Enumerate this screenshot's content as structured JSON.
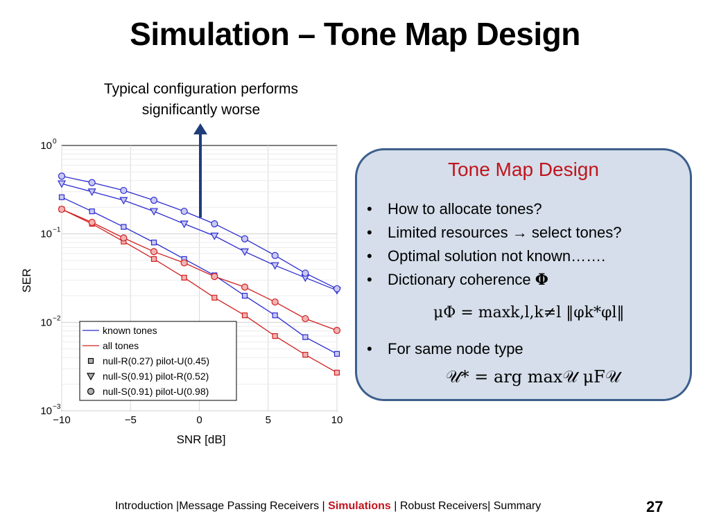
{
  "slide": {
    "title": "Simulation – Tone Map Design",
    "annotation_line1": "Typical configuration performs",
    "annotation_line2": "significantly worse",
    "page_number": "27"
  },
  "info_box": {
    "title": "Tone Map Design",
    "bullets": [
      "How to allocate tones?",
      "Limited resources → select tones?",
      "Optimal solution not known…….",
      "Dictionary coherence"
    ],
    "bullet4_symbol": "Φ",
    "formula1": "μΦ = maxk,l,k≠l ‖φk*φl‖",
    "bullet5": "For same node type",
    "formula2": "𝒰* = arg max𝒰  μF𝒰"
  },
  "footer": {
    "intro": "Introduction |",
    "mp": "Message Passing Receivers | ",
    "sim": "Simulations",
    "rest": " | Robust Receivers| Summary"
  },
  "colors": {
    "title_red": "#c0141c",
    "blue_series": "#2b2bcf",
    "red_series": "#d02020",
    "box_fill": "#d5deea",
    "box_border": "#3b5e8c",
    "arrow": "#1f3d7a"
  },
  "chart_data": {
    "type": "line",
    "xlabel": "SNR [dB]",
    "ylabel": "SER",
    "x": [
      -10,
      -7.8,
      -5.5,
      -3.3,
      -1.1,
      1.1,
      3.3,
      5.5,
      7.7,
      10
    ],
    "xlim": [
      -10,
      10
    ],
    "ylim": [
      0.001,
      1
    ],
    "yscale": "log",
    "xticks": [
      "−10",
      "−5",
      "0",
      "5",
      "10"
    ],
    "yticks": [
      "10",
      "10",
      "10",
      "10"
    ],
    "ytick_exponents": [
      "0",
      "−1",
      "−2",
      "−3"
    ],
    "grid": true,
    "legend_position": "bottom-left",
    "legend": [
      {
        "label": "known tones",
        "kind": "line",
        "color": "blue"
      },
      {
        "label": "all tones",
        "kind": "line",
        "color": "red"
      },
      {
        "label": "null-R(0.27) pilot-U(0.45)",
        "kind": "marker",
        "marker": "square"
      },
      {
        "label": "null-S(0.91) pilot-R(0.52)",
        "kind": "marker",
        "marker": "triangle"
      },
      {
        "label": "null-S(0.91) pilot-U(0.98)",
        "kind": "marker",
        "marker": "circle"
      }
    ],
    "series": [
      {
        "group": "known tones",
        "marker": "square",
        "color": "blue",
        "values": [
          0.26,
          0.18,
          0.12,
          0.08,
          0.052,
          0.034,
          0.02,
          0.012,
          0.0068,
          0.0044
        ]
      },
      {
        "group": "known tones",
        "marker": "triangle",
        "color": "blue",
        "values": [
          0.37,
          0.3,
          0.24,
          0.18,
          0.13,
          0.095,
          0.063,
          0.044,
          0.032,
          0.023
        ]
      },
      {
        "group": "known tones",
        "marker": "circle",
        "color": "blue",
        "values": [
          0.45,
          0.38,
          0.31,
          0.24,
          0.18,
          0.13,
          0.088,
          0.057,
          0.036,
          0.024
        ]
      },
      {
        "group": "all tones",
        "marker": "square",
        "color": "red",
        "values": [
          0.19,
          0.13,
          0.082,
          0.052,
          0.032,
          0.019,
          0.012,
          0.007,
          0.0043,
          0.0027
        ]
      },
      {
        "group": "all tones",
        "marker": "circle",
        "color": "red",
        "values": [
          0.19,
          0.135,
          0.09,
          0.063,
          0.047,
          0.033,
          0.025,
          0.017,
          0.011,
          0.0081
        ]
      }
    ]
  }
}
